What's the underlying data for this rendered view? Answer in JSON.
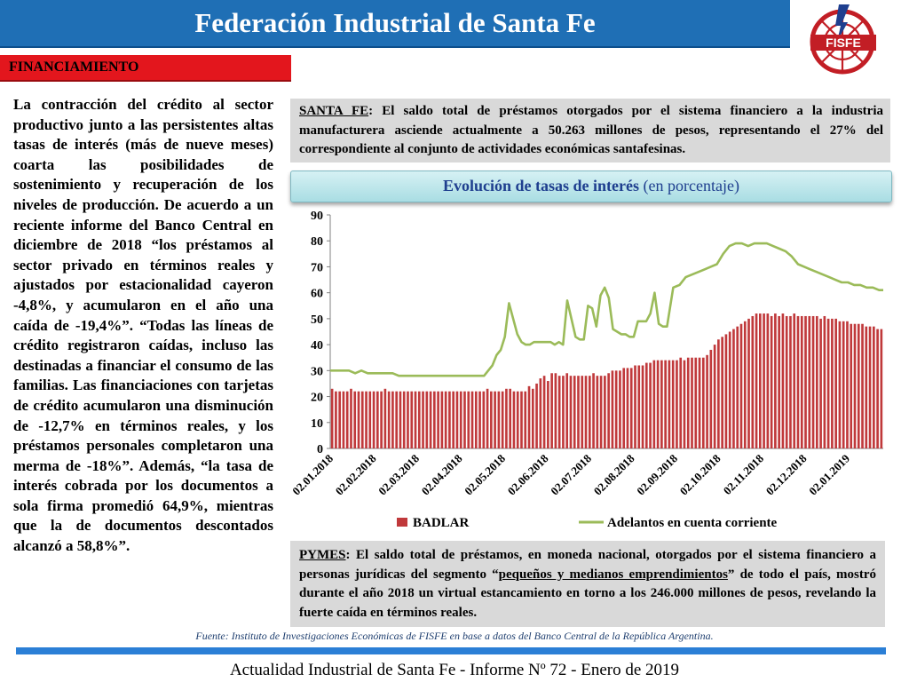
{
  "header": {
    "title": "Federación Industrial de Santa Fe",
    "logo_text": "FISFE"
  },
  "section": {
    "label": "FINANCIAMIENTO"
  },
  "left_text": "La contracción del crédito al sector productivo junto a las persistentes altas tasas de interés (más de nueve meses) coarta las posibilidades de sostenimiento y recuperación de los niveles de producción. De acuerdo a un reciente informe del Banco Central en diciembre de 2018 “los préstamos al sector privado en términos reales y ajustados por estacionalidad cayeron -4,8%, y acumularon en el año una caída de -19,4%”. “Todas las líneas de crédito registraron caídas, incluso las destinadas a financiar el consumo de las familias. Las financiaciones con tarjetas de crédito acumularon una disminución de -12,7% en términos reales, y los préstamos personales completaron una merma de -18%”. Además, “la tasa de interés cobrada por los documentos a sola firma promedió 64,9%, mientras que la de documentos descontados alcanzó a 58,8%”.",
  "top_box": {
    "label": "SANTA FE",
    "text": ": El saldo total de préstamos otorgados por el sistema financiero a la industria manufacturera asciende actualmente a 50.263 millones de pesos, representando el 27% del correspondiente al conjunto de actividades económicas santafesinas."
  },
  "bottom_box": {
    "label": "PYMES",
    "text_a": ": El saldo total de préstamos, en moneda nacional, otorgados por el sistema financiero a personas jurídicas del segmento “",
    "highlight": "pequeños y medianos emprendimientos",
    "text_b": "” de todo el país, mostró durante el año 2018 un virtual estancamiento en torno a los 246.000 millones de pesos, revelando la fuerte caída en términos reales."
  },
  "chart_title": {
    "bold": "Evolución de tasas de interés",
    "normal": " (en porcentaje)"
  },
  "chart_data": {
    "type": "bar+line",
    "ylim": [
      0,
      90
    ],
    "yticks": [
      0,
      10,
      20,
      30,
      40,
      50,
      60,
      70,
      80,
      90
    ],
    "xticks": [
      "02.01.2018",
      "02.02.2018",
      "02.03.2018",
      "02.04.2018",
      "02.05.2018",
      "02.06.2018",
      "02.07.2018",
      "02.08.2018",
      "02.09.2018",
      "02.10.2018",
      "02.11.2018",
      "02.12.2018",
      "02.01.2019"
    ],
    "series": [
      {
        "name": "BADLAR",
        "type": "bar",
        "color": "#c0393b",
        "values": [
          23,
          22,
          22,
          22,
          22,
          23,
          22,
          22,
          22,
          22,
          22,
          22,
          22,
          22,
          23,
          22,
          22,
          22,
          22,
          22,
          22,
          22,
          22,
          22,
          22,
          22,
          22,
          22,
          22,
          22,
          22,
          22,
          22,
          22,
          22,
          22,
          22,
          22,
          22,
          22,
          22,
          23,
          22,
          22,
          22,
          22,
          23,
          23,
          22,
          22,
          22,
          22,
          24,
          23,
          25,
          27,
          28,
          26,
          29,
          29,
          28,
          28,
          29,
          28,
          28,
          28,
          28,
          28,
          28,
          29,
          28,
          28,
          28,
          29,
          30,
          30,
          30,
          31,
          31,
          31,
          32,
          32,
          32,
          33,
          33,
          34,
          34,
          34,
          34,
          34,
          34,
          34,
          35,
          34,
          35,
          35,
          35,
          35,
          35,
          36,
          38,
          40,
          42,
          43,
          44,
          45,
          46,
          47,
          48,
          49,
          50,
          51,
          52,
          52,
          52,
          52,
          51,
          52,
          51,
          52,
          51,
          51,
          52,
          51,
          51,
          51,
          51,
          51,
          51,
          50,
          51,
          50,
          50,
          50,
          49,
          49,
          49,
          48,
          48,
          48,
          48,
          47,
          47,
          47,
          46,
          46
        ]
      },
      {
        "name": "Adelantos en cuenta corriente",
        "type": "line",
        "color": "#9bbb59",
        "x": [
          0,
          3,
          6,
          9,
          12,
          15,
          18,
          21,
          24,
          27,
          30,
          33,
          36,
          39,
          42,
          45,
          48,
          51,
          54,
          57,
          60,
          62,
          64,
          66,
          68,
          70,
          72,
          74,
          76,
          78,
          80,
          82,
          84,
          86,
          88,
          90,
          92,
          94,
          96,
          98,
          100,
          102,
          104,
          106,
          108,
          110,
          112,
          114,
          116,
          118,
          120,
          122,
          124,
          126,
          128,
          130,
          132,
          134,
          136,
          138,
          140,
          142,
          144,
          146,
          148,
          150,
          152,
          154,
          156,
          158,
          160,
          162,
          165,
          168,
          171,
          174,
          177,
          180,
          183,
          186,
          189,
          192,
          195,
          198,
          201,
          204,
          207,
          210,
          213,
          216,
          219,
          222,
          225,
          228,
          231,
          234,
          237,
          240,
          243,
          246,
          249,
          252,
          255,
          258,
          261,
          264,
          266
        ],
        "values": [
          30,
          30,
          30,
          30,
          29,
          30,
          29,
          29,
          29,
          29,
          29,
          28,
          28,
          28,
          28,
          28,
          28,
          28,
          28,
          28,
          28,
          28,
          28,
          28,
          28,
          28,
          28,
          28,
          30,
          32,
          36,
          38,
          43,
          56,
          50,
          44,
          41,
          40,
          40,
          41,
          41,
          41,
          41,
          41,
          40,
          41,
          40,
          57,
          50,
          43,
          42,
          42,
          55,
          54,
          47,
          59,
          62,
          58,
          46,
          45,
          44,
          44,
          43,
          43,
          49,
          49,
          49,
          52,
          60,
          48,
          47,
          47,
          62,
          63,
          66,
          67,
          68,
          69,
          70,
          71,
          75,
          78,
          79,
          79,
          78,
          79,
          79,
          79,
          78,
          77,
          76,
          74,
          71,
          70,
          69,
          68,
          67,
          66,
          65,
          64,
          64,
          63,
          63,
          62,
          62,
          61,
          61
        ]
      }
    ],
    "legend": "bottom"
  },
  "source": "Fuente: Instituto de Investigaciones Económicas de FISFE en base a datos del Banco Central de la República Argentina.",
  "footer": "Actualidad Industrial de Santa Fe - Informe Nº 72 - Enero de 2019"
}
